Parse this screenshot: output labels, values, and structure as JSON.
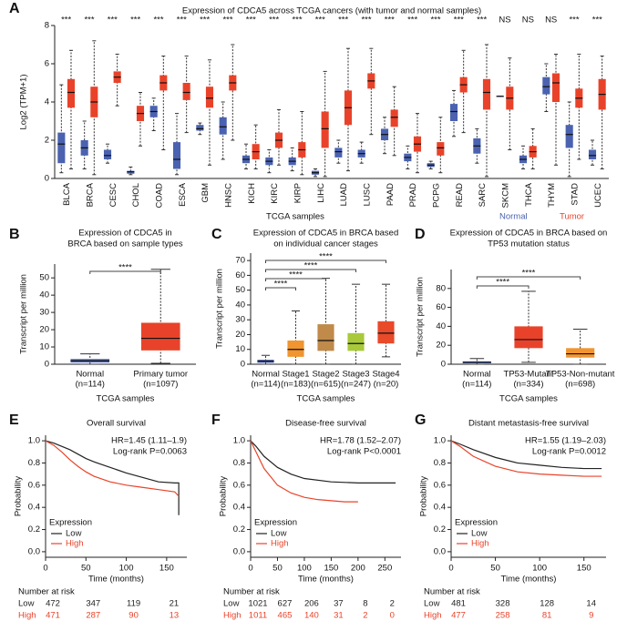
{
  "chart_data": [
    {
      "type": "box",
      "panel_label": "A",
      "title": "Expression of CDCA5 across TCGA cancers (with tumor and normal samples)",
      "y_label": "Log2 (TPM+1)",
      "x_label": "TCGA samples",
      "ylim": [
        0,
        8
      ],
      "yticks": [
        0,
        2,
        4,
        6,
        8
      ],
      "categories": [
        "BLCA",
        "BRCA",
        "CESC",
        "CHOL",
        "COAD",
        "ESCA",
        "GBM",
        "HNSC",
        "KICH",
        "KIRC",
        "KIRP",
        "LIHC",
        "LUAD",
        "LUSC",
        "PAAD",
        "PRAD",
        "PCPG",
        "READ",
        "SARC",
        "SKCM",
        "THCA",
        "THYM",
        "STAD",
        "UCEC"
      ],
      "significance": [
        "***",
        "***",
        "***",
        "***",
        "***",
        "***",
        "***",
        "***",
        "***",
        "***",
        "***",
        "***",
        "***",
        "***",
        "***",
        "***",
        "***",
        "***",
        "***",
        "NS",
        "NS",
        "NS",
        "***",
        "***"
      ],
      "series": [
        {
          "name": "Normal",
          "color": "#4a62b0",
          "values": [
            [
              0.3,
              0.8,
              1.8,
              2.4,
              4.9
            ],
            [
              0.5,
              1.2,
              1.6,
              2.0,
              3.0
            ],
            [
              0.8,
              1.0,
              1.2,
              1.5,
              1.8
            ],
            [
              0.2,
              0.25,
              0.35,
              0.4,
              0.6
            ],
            [
              2.5,
              3.2,
              3.5,
              3.8,
              4.2
            ],
            [
              0.2,
              0.5,
              1.0,
              1.9,
              3.4
            ],
            [
              2.3,
              2.5,
              2.6,
              2.8,
              2.9
            ],
            [
              1.0,
              2.3,
              2.7,
              3.2,
              4.0
            ],
            [
              0.5,
              0.8,
              1.0,
              1.2,
              1.8
            ],
            [
              0.3,
              0.7,
              0.9,
              1.1,
              1.5
            ],
            [
              0.4,
              0.7,
              0.9,
              1.1,
              1.6
            ],
            [
              0.1,
              0.2,
              0.3,
              0.4,
              0.5
            ],
            [
              0.8,
              1.1,
              1.4,
              1.6,
              2.0
            ],
            [
              0.8,
              1.1,
              1.3,
              1.5,
              1.9
            ],
            [
              1.3,
              2.0,
              2.3,
              2.6,
              3.2
            ],
            [
              0.5,
              0.9,
              1.1,
              1.3,
              1.7
            ],
            [
              0.5,
              0.6,
              0.7,
              0.8,
              0.9
            ],
            [
              2.2,
              3.0,
              3.5,
              3.9,
              4.6
            ],
            [
              0.8,
              1.3,
              1.7,
              2.1,
              2.6
            ],
            [
              4.3,
              4.3,
              4.3,
              4.3,
              4.3
            ],
            [
              0.5,
              0.8,
              1.0,
              1.2,
              1.7
            ],
            [
              3.5,
              4.4,
              4.8,
              5.3,
              6.0
            ],
            [
              0.1,
              1.6,
              2.3,
              2.8,
              4.0
            ],
            [
              0.7,
              1.0,
              1.2,
              1.5,
              2.0
            ]
          ]
        },
        {
          "name": "Tumor",
          "color": "#e8432a",
          "values": [
            [
              0.5,
              3.7,
              4.5,
              5.2,
              6.7
            ],
            [
              0.2,
              3.2,
              4.0,
              4.8,
              7.2
            ],
            [
              3.8,
              5.0,
              5.3,
              5.6,
              6.5
            ],
            [
              1.7,
              3.0,
              3.4,
              3.8,
              4.5
            ],
            [
              1.5,
              4.6,
              5.0,
              5.4,
              6.4
            ],
            [
              2.4,
              4.1,
              4.5,
              5.0,
              6.4
            ],
            [
              0.7,
              3.7,
              4.2,
              4.8,
              6.2
            ],
            [
              2.0,
              4.6,
              5.0,
              5.4,
              7.0
            ],
            [
              0.5,
              1.0,
              1.4,
              1.8,
              2.8
            ],
            [
              0.7,
              1.6,
              2.0,
              2.4,
              3.6
            ],
            [
              0.2,
              1.1,
              1.5,
              1.9,
              3.5
            ],
            [
              0.1,
              1.6,
              2.6,
              3.5,
              5.6
            ],
            [
              0.4,
              2.8,
              3.7,
              4.6,
              6.8
            ],
            [
              2.3,
              4.7,
              5.1,
              5.5,
              6.8
            ],
            [
              1.2,
              2.7,
              3.2,
              3.6,
              4.8
            ],
            [
              0.3,
              1.4,
              1.8,
              2.2,
              3.4
            ],
            [
              0.3,
              1.2,
              1.6,
              1.9,
              3.2
            ],
            [
              2.4,
              4.5,
              4.9,
              5.3,
              6.7
            ],
            [
              0.1,
              3.6,
              4.5,
              5.2,
              7.0
            ],
            [
              1.5,
              3.6,
              4.2,
              4.8,
              6.3
            ],
            [
              0.5,
              1.1,
              1.4,
              1.7,
              2.6
            ],
            [
              0.7,
              4.0,
              5.0,
              5.5,
              6.5
            ],
            [
              1.0,
              3.7,
              4.2,
              4.7,
              6.5
            ],
            [
              0.5,
              3.6,
              4.4,
              5.2,
              6.4
            ]
          ]
        }
      ]
    },
    {
      "type": "box",
      "panel_label": "B",
      "title": [
        "Expression of CDCA5 in",
        "BRCA based on sample types"
      ],
      "y_label": "Transcript per million",
      "x_label": "TCGA samples",
      "ylim": [
        0,
        58
      ],
      "yticks": [
        0,
        10,
        20,
        30,
        40,
        50
      ],
      "categories": [
        "Normal",
        "Primary tumor"
      ],
      "category_counts": [
        "(n=114)",
        "(n=1097)"
      ],
      "values": [
        [
          0,
          1,
          2,
          3,
          6
        ],
        [
          0.5,
          8,
          15,
          24,
          55
        ]
      ],
      "colors": [
        "#4a62b0",
        "#e8432a"
      ],
      "significance": [
        "****"
      ]
    },
    {
      "type": "box",
      "panel_label": "C",
      "title": [
        "Expression of CDCA5 in BRCA based",
        "on individual cancer stages"
      ],
      "y_label": "Transcript per million",
      "x_label": "TCGA samples",
      "ylim": [
        0,
        75
      ],
      "yticks": [
        0,
        10,
        20,
        30,
        40,
        50,
        60,
        70
      ],
      "categories": [
        "Normal",
        "Stage1",
        "Stage2",
        "Stage3",
        "Stage4"
      ],
      "category_counts": [
        "(n=114)",
        "(n=183)",
        "(n=615)",
        "(n=247)",
        "(n=20)"
      ],
      "values": [
        [
          0,
          1,
          2,
          3,
          6
        ],
        [
          0,
          5,
          10,
          16,
          36
        ],
        [
          0,
          9,
          16,
          27,
          58
        ],
        [
          0,
          9,
          14,
          21,
          54
        ],
        [
          5,
          14,
          21,
          29,
          54
        ]
      ],
      "colors": [
        "#4a62b0",
        "#f0952f",
        "#c08a4a",
        "#a9c93a",
        "#e84a2a"
      ],
      "significance": [
        "****",
        "****",
        "****",
        "****"
      ]
    },
    {
      "type": "box",
      "panel_label": "D",
      "title": [
        "Expression of CDCA5 in BRCA based on",
        "TP53 mutation status"
      ],
      "y_label": "Transcript per million",
      "x_label": "TCGA samples",
      "ylim": [
        0,
        100
      ],
      "yticks": [
        0,
        20,
        40,
        60,
        80
      ],
      "categories": [
        "Normal",
        "TP53-Mutant",
        "TP53-Non-mutant"
      ],
      "category_counts": [
        "(n=114)",
        "(n=334)",
        "(n=698)"
      ],
      "values": [
        [
          0,
          1,
          2,
          3,
          6
        ],
        [
          2,
          17,
          26,
          40,
          77
        ],
        [
          0,
          7,
          11,
          17,
          37
        ]
      ],
      "colors": [
        "#4a62b0",
        "#e8432a",
        "#f0952f"
      ],
      "significance": [
        "****",
        "****"
      ]
    },
    {
      "type": "km",
      "panel_label": "E",
      "title": "Overall survival",
      "hr": "HR=1.45 (1.11–1.9)",
      "logrank": "Log-rank P=0.0063",
      "y_label": "Probability",
      "x_label": "Time (months)",
      "xlim": [
        0,
        175
      ],
      "xticks": [
        0,
        50,
        100,
        150
      ],
      "ylim": [
        -0.05,
        1.05
      ],
      "yticks": [
        {
          "value": 0,
          "label": "0.0"
        },
        0.2,
        0.4,
        0.6,
        0.8,
        {
          "value": 1,
          "label": "1.0"
        }
      ],
      "legend_title": "Expression",
      "risk_title": "Number at risk",
      "series": [
        {
          "name": "Low",
          "color": "#222222",
          "x": [
            0,
            10,
            20,
            30,
            40,
            50,
            60,
            80,
            100,
            120,
            140,
            160,
            165,
            165
          ],
          "values": [
            1,
            0.98,
            0.95,
            0.92,
            0.88,
            0.84,
            0.81,
            0.76,
            0.71,
            0.67,
            0.63,
            0.62,
            0.62,
            0.33
          ],
          "at_risk": [
            472,
            347,
            119,
            21
          ]
        },
        {
          "name": "High",
          "color": "#e8432a",
          "x": [
            0,
            10,
            20,
            30,
            40,
            50,
            60,
            80,
            100,
            120,
            140,
            160,
            165
          ],
          "values": [
            1,
            0.96,
            0.9,
            0.83,
            0.77,
            0.72,
            0.68,
            0.63,
            0.6,
            0.58,
            0.56,
            0.54,
            0.5
          ],
          "at_risk": [
            471,
            287,
            90,
            13
          ]
        }
      ]
    },
    {
      "type": "km",
      "panel_label": "F",
      "title": "Disease-free survival",
      "hr": "HR=1.78 (1.52–2.07)",
      "logrank": "Log-rank P<0.0001",
      "y_label": "Probability",
      "x_label": "Time (months)",
      "xlim": [
        0,
        280
      ],
      "xticks": [
        0,
        50,
        100,
        150,
        200,
        250
      ],
      "ylim": [
        -0.05,
        1.05
      ],
      "yticks": [
        {
          "value": 0,
          "label": "0.0"
        },
        0.2,
        0.4,
        0.6,
        0.8,
        {
          "value": 1,
          "label": "1.0"
        }
      ],
      "legend_title": "Expression",
      "risk_title": "Number at risk",
      "series": [
        {
          "name": "Low",
          "color": "#222222",
          "x": [
            0,
            10,
            25,
            50,
            75,
            100,
            150,
            200,
            250,
            270
          ],
          "values": [
            1,
            0.95,
            0.86,
            0.76,
            0.7,
            0.66,
            0.63,
            0.62,
            0.62,
            0.62
          ],
          "at_risk": [
            1021,
            627,
            206,
            37,
            8,
            2
          ]
        },
        {
          "name": "High",
          "color": "#e8432a",
          "x": [
            0,
            10,
            25,
            50,
            75,
            100,
            125,
            150,
            175,
            200
          ],
          "values": [
            1,
            0.9,
            0.75,
            0.6,
            0.53,
            0.49,
            0.47,
            0.46,
            0.45,
            0.45
          ],
          "at_risk": [
            1011,
            465,
            140,
            31,
            2,
            0
          ]
        }
      ]
    },
    {
      "type": "km",
      "panel_label": "G",
      "title": "Distant metastasis-free survival",
      "hr": "HR=1.55 (1.19–2.03)",
      "logrank": "Log-rank P=0.0012",
      "y_label": "Probability",
      "x_label": "Time (months)",
      "xlim": [
        0,
        175
      ],
      "xticks": [
        0,
        50,
        100,
        150
      ],
      "ylim": [
        -0.05,
        1.05
      ],
      "yticks": [
        {
          "value": 0,
          "label": "0.0"
        },
        0.2,
        0.4,
        0.6,
        0.8,
        {
          "value": 1,
          "label": "1.0"
        }
      ],
      "legend_title": "Expression",
      "risk_title": "Number at risk",
      "series": [
        {
          "name": "Low",
          "color": "#222222",
          "x": [
            0,
            10,
            25,
            50,
            75,
            100,
            125,
            150,
            170
          ],
          "values": [
            1,
            0.97,
            0.92,
            0.85,
            0.8,
            0.78,
            0.76,
            0.75,
            0.75
          ],
          "at_risk": [
            481,
            328,
            128,
            14
          ]
        },
        {
          "name": "High",
          "color": "#e8432a",
          "x": [
            0,
            10,
            25,
            50,
            75,
            100,
            125,
            150,
            170
          ],
          "values": [
            1,
            0.95,
            0.86,
            0.77,
            0.72,
            0.7,
            0.69,
            0.68,
            0.68
          ],
          "at_risk": [
            477,
            258,
            81,
            9
          ]
        }
      ]
    }
  ]
}
